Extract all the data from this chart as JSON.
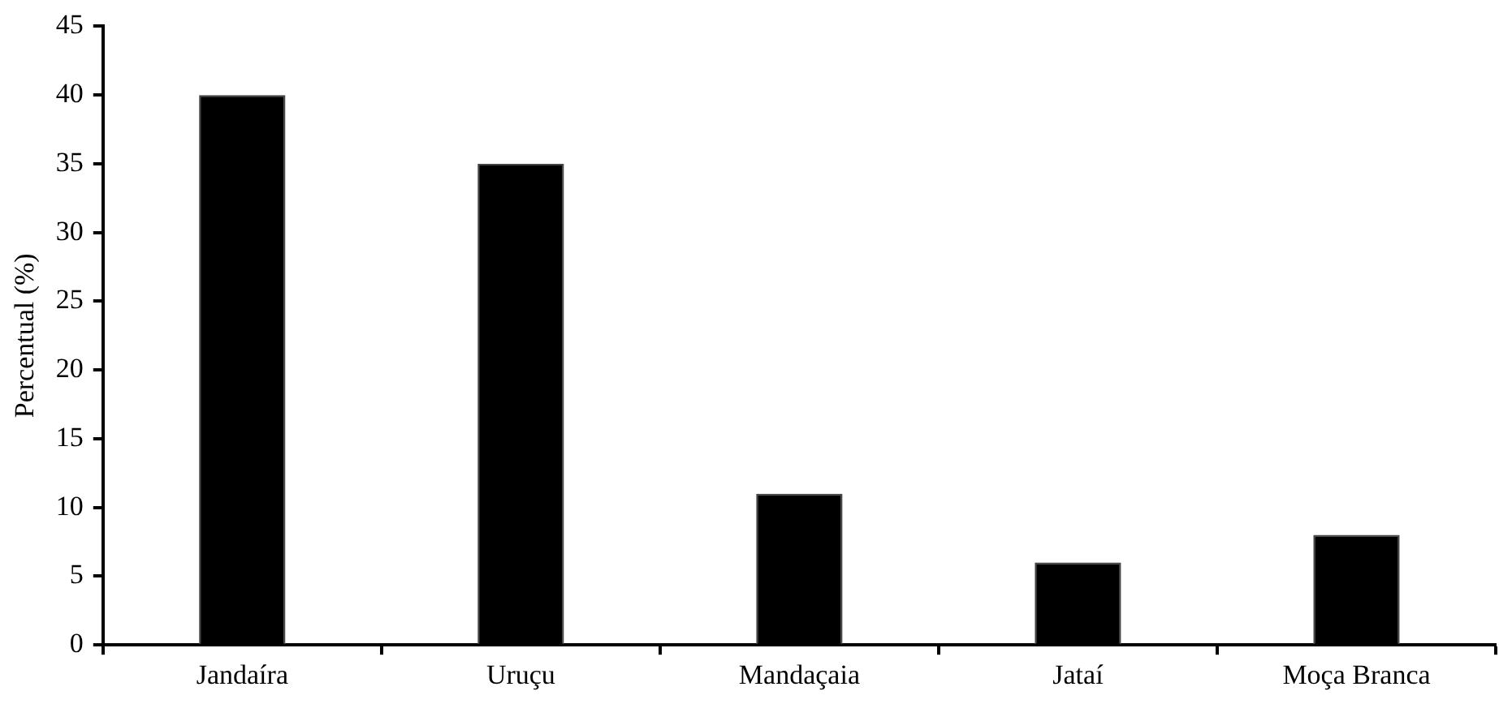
{
  "chart_data": {
    "type": "bar",
    "ylabel": "Percentual (%)",
    "categories": [
      "Jandaíra",
      "Uruçu",
      "Mandaçaia",
      "Jataí",
      "Moça Branca"
    ],
    "values": [
      40,
      35,
      11,
      6,
      8
    ],
    "color": "#000000",
    "ylim": [
      0,
      45
    ],
    "yticks": [
      0,
      5,
      10,
      15,
      20,
      25,
      30,
      35,
      40,
      45
    ],
    "grid": false,
    "legend": false
  }
}
